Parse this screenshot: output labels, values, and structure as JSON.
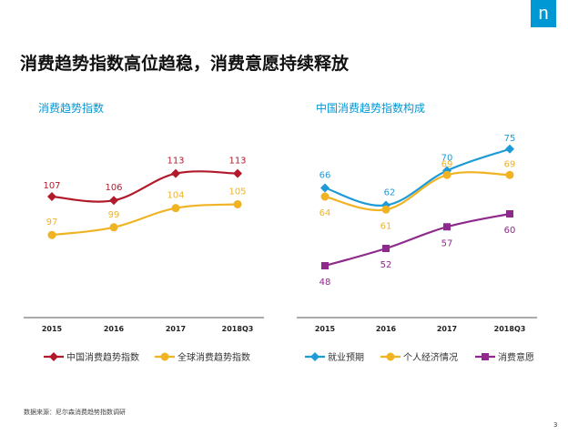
{
  "logo": "n",
  "page_title": "消费趋势指数高位趋稳，消费意愿持续释放",
  "source_note": "数据来源：尼尔森消费趋势指数调研",
  "page_number": "3",
  "colors": {
    "accent": "#0098d4",
    "red": "#b21a2c",
    "yellow": "#f0b323",
    "blue": "#1e9bd7",
    "purple": "#8e2a8c"
  },
  "chart_data": [
    {
      "type": "line",
      "title": "消费趋势指数",
      "categories": [
        "2015",
        "2016",
        "2017",
        "2018Q3"
      ],
      "ylim": [
        80,
        125
      ],
      "grid": false,
      "legend": "bottom",
      "series": [
        {
          "name": "中国消费趋势指数",
          "values": [
            107,
            106,
            113,
            113
          ],
          "color": "#b21a2c",
          "marker": "diamond"
        },
        {
          "name": "全球消费趋势指数",
          "values": [
            97,
            99,
            104,
            105
          ],
          "color": "#f0b323",
          "marker": "circle"
        }
      ]
    },
    {
      "type": "line",
      "title": "中国消费趋势指数构成",
      "categories": [
        "2015",
        "2016",
        "2017",
        "2018Q3"
      ],
      "ylim": [
        40,
        80
      ],
      "grid": false,
      "legend": "bottom",
      "series": [
        {
          "name": "就业预期",
          "values": [
            66,
            62,
            70,
            75
          ],
          "color": "#1e9bd7",
          "marker": "diamond"
        },
        {
          "name": "个人经济情况",
          "values": [
            64,
            61,
            69,
            69
          ],
          "color": "#f0b323",
          "marker": "circle"
        },
        {
          "name": "消费意愿",
          "values": [
            48,
            52,
            57,
            60
          ],
          "color": "#8e2a8c",
          "marker": "square"
        }
      ]
    }
  ]
}
